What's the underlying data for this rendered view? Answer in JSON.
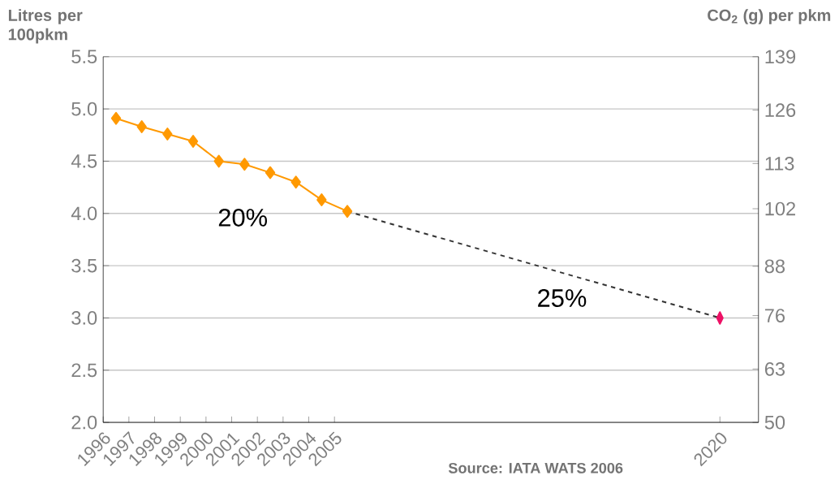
{
  "chart_data": {
    "type": "line",
    "ylabel": "Litres per 100pkm",
    "y2label": "CO$_{2}$ (g) per pkm",
    "xlim": [
      1996,
      2021.5
    ],
    "xticks": [
      1996,
      1997,
      1998,
      1999,
      2000,
      2001,
      2002,
      2003,
      2004,
      2005,
      2020
    ],
    "ylim": [
      2.0,
      5.5
    ],
    "yticks": [
      {
        "value": 2.0,
        "label": "2.0"
      },
      {
        "value": 2.5,
        "label": "2.5"
      },
      {
        "value": 3.0,
        "label": "3.0"
      },
      {
        "value": 3.5,
        "label": "3.5"
      },
      {
        "value": 4.0,
        "label": "4.0"
      },
      {
        "value": 4.5,
        "label": "4.5"
      },
      {
        "value": 5.0,
        "label": "5.0"
      },
      {
        "value": 5.5,
        "label": "5.5"
      }
    ],
    "y2lim": [
      50,
      139
    ],
    "y2ticks": [
      50,
      63,
      76,
      88,
      102,
      113,
      126,
      139
    ],
    "grid": "y",
    "series": [
      {
        "color": "#ff9900",
        "marker": "diamond",
        "line_style": "solid",
        "x": [
          1996.5,
          1997.5,
          1998.5,
          1999.5,
          2000.5,
          2001.5,
          2002.5,
          2003.5,
          2004.5,
          2005.5
        ],
        "values": [
          4.91,
          4.83,
          4.76,
          4.69,
          4.5,
          4.47,
          4.39,
          4.3,
          4.13,
          4.02
        ]
      },
      {
        "type": "line",
        "color": "#333333",
        "marker": "none",
        "line_style": "dashed",
        "x": [
          2005.5,
          2020
        ],
        "values": [
          4.02,
          3.0
        ]
      },
      {
        "type": "scatter",
        "color": "#ee1166",
        "marker": "diamond",
        "x": [
          2020
        ],
        "values": [
          3.0
        ]
      }
    ],
    "annotations": [
      "20%",
      "25%",
      "Source: IATA WATS 2006"
    ]
  }
}
